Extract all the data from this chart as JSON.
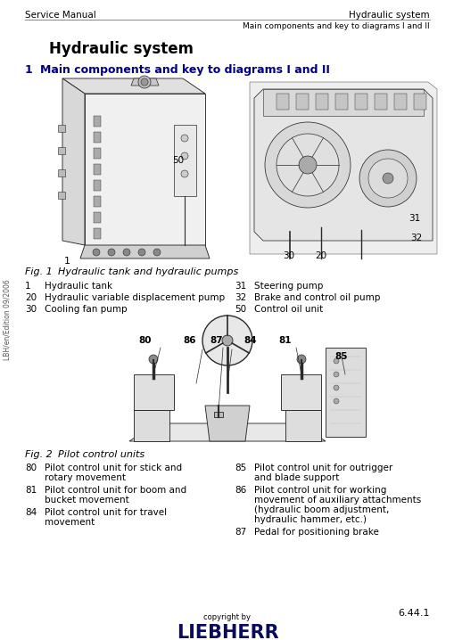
{
  "header_left": "Service Manual",
  "header_right": "Hydraulic system",
  "header_sub": "Main components and key to diagrams I and II",
  "section_title": "Hydraulic system",
  "section_number": "1",
  "section_subtitle": "Main components and key to diagrams I and II",
  "fig1_caption_label": "Fig. 1",
  "fig1_caption_text": "Hydraulic tank and hydraulic pumps",
  "fig2_caption_label": "Fig. 2",
  "fig2_caption_text": "Pilot control units",
  "legend1": [
    {
      "num": "1",
      "text": "Hydraulic tank"
    },
    {
      "num": "20",
      "text": "Hydraulic variable displacement pump"
    },
    {
      "num": "30",
      "text": "Cooling fan pump"
    }
  ],
  "legend1_right": [
    {
      "num": "31",
      "text": "Steering pump"
    },
    {
      "num": "32",
      "text": "Brake and control oil pump"
    },
    {
      "num": "50",
      "text": "Control oil unit"
    }
  ],
  "legend2": [
    {
      "num": "80",
      "text": "Pilot control unit for stick and rotary movement"
    },
    {
      "num": "81",
      "text": "Pilot control unit for boom and bucket movement"
    },
    {
      "num": "84",
      "text": "Pilot control unit for travel movement"
    }
  ],
  "legend2_right": [
    {
      "num": "85",
      "text": "Pilot control unit for outrigger and blade support"
    },
    {
      "num": "86",
      "text": "Pilot control unit for working movement of auxiliary attachments (hydraulic boom adjustment, hydraulic hammer, etc.)"
    },
    {
      "num": "87",
      "text": "Pedal for positioning brake"
    }
  ],
  "page_number": "6.44.1",
  "footer_copy": "copyright by",
  "footer_brand": "LIEBHERR",
  "side_text": "LBH/en/Edition 09/2006",
  "bg_color": "#ffffff",
  "header_line_color": "#999999",
  "text_color": "#000000",
  "num_color": "#000080",
  "caption_color": "#000000"
}
